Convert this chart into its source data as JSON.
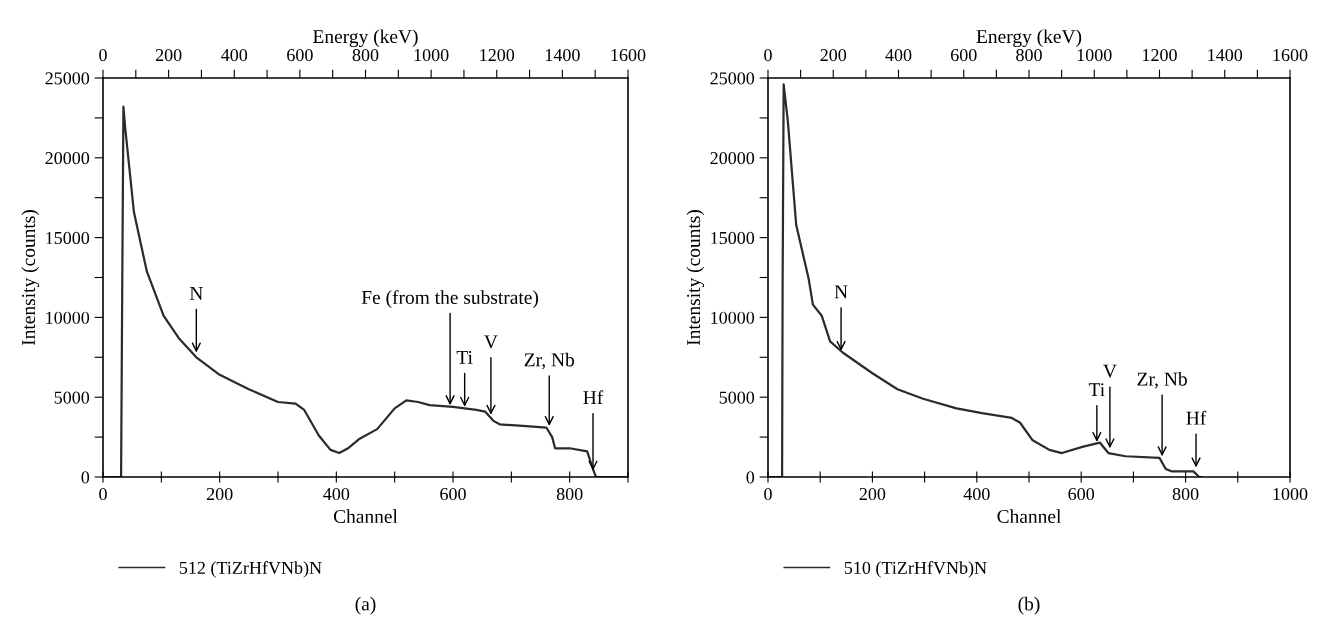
{
  "chart_data": [
    {
      "type": "line",
      "xlabel": "Channel",
      "ylabel": "Intensity (counts)",
      "x2label": "Energy (keV)",
      "xlim": [
        0,
        900
      ],
      "xticks": [
        0,
        {
          "value": 100,
          "label": null
        },
        200,
        {
          "value": 300,
          "label": null
        },
        400,
        {
          "value": 500,
          "label": null
        },
        600,
        {
          "value": 700,
          "label": null
        },
        800,
        {
          "value": 900,
          "label": null
        }
      ],
      "x2lim": [
        0,
        1600
      ],
      "x2ticks": [
        0,
        {
          "value": 100,
          "label": null
        },
        200,
        {
          "value": 300,
          "label": null
        },
        400,
        {
          "value": 500,
          "label": null
        },
        600,
        {
          "value": 700,
          "label": null
        },
        800,
        {
          "value": 900,
          "label": null
        },
        1000,
        {
          "value": 1100,
          "label": null
        },
        1200,
        {
          "value": 1300,
          "label": null
        },
        1400,
        {
          "value": 1500,
          "label": null
        },
        1600
      ],
      "ylim": [
        0,
        25000
      ],
      "yticks": [
        0,
        {
          "value": 2500,
          "label": null
        },
        5000,
        {
          "value": 7500,
          "label": null
        },
        10000,
        {
          "value": 12500,
          "label": null
        },
        15000,
        {
          "value": 17500,
          "label": null
        },
        20000,
        {
          "value": 22500,
          "label": null
        },
        25000
      ],
      "grid": false,
      "legend": "bottom",
      "marker": "none",
      "line_style": "solid",
      "series": [
        {
          "name": "512 (TiZrHfVNb)N",
          "color": "#2b2b2b",
          "x": [
            0,
            31,
            33,
            35,
            38,
            53,
            75,
            104,
            130,
            160,
            200,
            250,
            300,
            330,
            345,
            370,
            390,
            405,
            420,
            440,
            470,
            500,
            520,
            540,
            560,
            600,
            640,
            655,
            670,
            680,
            720,
            760,
            770,
            775,
            800,
            830,
            840,
            845,
            900
          ],
          "values": [
            0,
            0,
            12000,
            23200,
            21900,
            16600,
            12900,
            10100,
            8700,
            7500,
            6400,
            5500,
            4700,
            4600,
            4200,
            2600,
            1700,
            1500,
            1800,
            2400,
            3000,
            4300,
            4800,
            4700,
            4500,
            4400,
            4200,
            4100,
            3500,
            3300,
            3200,
            3100,
            2500,
            1800,
            1800,
            1600,
            500,
            0,
            0
          ]
        }
      ],
      "annotations": [
        {
          "text": "N",
          "x": 160,
          "y": 7800
        },
        {
          "text": "Fe (from the substrate)",
          "x": 595,
          "y": 4500
        },
        {
          "text": "Ti",
          "x": 620,
          "y": 4400
        },
        {
          "text": "V",
          "x": 665,
          "y": 3900
        },
        {
          "text": "Zr, Nb",
          "x": 765,
          "y": 3200
        },
        {
          "text": "Hf",
          "x": 840,
          "y": 400
        },
        "(a)"
      ]
    },
    {
      "type": "line",
      "xlabel": "Channel",
      "ylabel": "Intensity (counts)",
      "x2label": "Energy (keV)",
      "xlim": [
        0,
        1000
      ],
      "xticks": [
        0,
        {
          "value": 100,
          "label": null
        },
        200,
        {
          "value": 300,
          "label": null
        },
        400,
        {
          "value": 500,
          "label": null
        },
        600,
        {
          "value": 700,
          "label": null
        },
        800,
        {
          "value": 900,
          "label": null
        },
        1000
      ],
      "x2lim": [
        0,
        1600
      ],
      "x2ticks": [
        0,
        {
          "value": 100,
          "label": null
        },
        200,
        {
          "value": 300,
          "label": null
        },
        400,
        {
          "value": 500,
          "label": null
        },
        600,
        {
          "value": 700,
          "label": null
        },
        800,
        {
          "value": 900,
          "label": null
        },
        1000,
        {
          "value": 1100,
          "label": null
        },
        1200,
        {
          "value": 1300,
          "label": null
        },
        1400,
        {
          "value": 1500,
          "label": null
        },
        1600
      ],
      "ylim": [
        0,
        25000
      ],
      "yticks": [
        0,
        {
          "value": 2500,
          "label": null
        },
        5000,
        {
          "value": 7500,
          "label": null
        },
        10000,
        {
          "value": 12500,
          "label": null
        },
        15000,
        {
          "value": 17500,
          "label": null
        },
        20000,
        {
          "value": 22500,
          "label": null
        },
        25000
      ],
      "grid": false,
      "legend": "bottom",
      "marker": "none",
      "line_style": "solid",
      "series": [
        {
          "name": "510 (TiZrHfVNb)N",
          "color": "#2b2b2b",
          "x": [
            0,
            27,
            28,
            30,
            38,
            54,
            78,
            86,
            103,
            119,
            143,
            200,
            248,
            297,
            361,
            410,
            467,
            483,
            507,
            539,
            563,
            604,
            636,
            652,
            685,
            750,
            762,
            774,
            815,
            826,
            830
          ],
          "values": [
            0,
            0,
            12000,
            24600,
            22300,
            15800,
            12400,
            10800,
            10100,
            8500,
            7800,
            6500,
            5500,
            4900,
            4300,
            4000,
            3700,
            3400,
            2300,
            1700,
            1500,
            1900,
            2150,
            1500,
            1300,
            1200,
            500,
            350,
            350,
            0,
            0
          ]
        }
      ],
      "annotations": [
        {
          "text": "N",
          "x": 140,
          "y": 7900
        },
        {
          "text": "Ti",
          "x": 630,
          "y": 2200
        },
        {
          "text": "V",
          "x": 655,
          "y": 1800
        },
        {
          "text": "Zr, Nb",
          "x": 755,
          "y": 1300
        },
        {
          "text": "Hf",
          "x": 820,
          "y": 600
        },
        "(b)"
      ]
    }
  ]
}
